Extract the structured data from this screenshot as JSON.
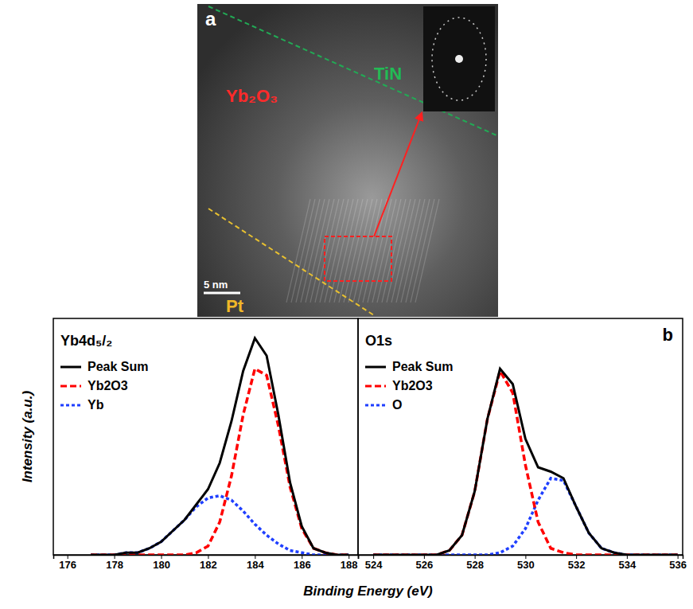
{
  "panel_a": {
    "letter": "a",
    "top_layer": "TiN",
    "oxide": "Yb₂O₃",
    "bottom_layer": "Pt",
    "scale_bar": "5 nm"
  },
  "panel_b": {
    "letter": "b",
    "xlabel": "Binding Energy (eV)",
    "ylabel": "Intensity (a.u.)"
  },
  "chart_data": [
    {
      "type": "line",
      "title": "Yb4d₅/₂",
      "x": [
        177,
        177.5,
        178,
        178.5,
        179,
        179.5,
        180,
        180.5,
        181,
        181.5,
        182,
        182.5,
        183,
        183.5,
        184,
        184.5,
        185,
        185.5,
        186,
        186.5,
        187,
        187.5,
        188
      ],
      "series": [
        {
          "name": "Peak Sum",
          "color": "#000000",
          "line_style": "solid",
          "values": [
            0,
            0,
            0,
            0.01,
            0.01,
            0.03,
            0.06,
            0.11,
            0.16,
            0.23,
            0.3,
            0.42,
            0.61,
            0.84,
            0.99,
            0.91,
            0.64,
            0.33,
            0.13,
            0.03,
            0.01,
            0,
            0
          ]
        },
        {
          "name": "Yb2O3",
          "color": "#ff0000",
          "line_style": "dashed",
          "values": [
            0,
            0,
            0,
            0,
            0,
            0,
            0,
            0,
            0,
            0.01,
            0.04,
            0.15,
            0.36,
            0.64,
            0.85,
            0.82,
            0.59,
            0.31,
            0.12,
            0.03,
            0.01,
            0,
            0
          ]
        },
        {
          "name": "Yb",
          "color": "#1f3fff",
          "line_style": "dotted",
          "values": [
            0,
            0,
            0,
            0.01,
            0.01,
            0.03,
            0.06,
            0.11,
            0.16,
            0.22,
            0.26,
            0.27,
            0.25,
            0.2,
            0.14,
            0.09,
            0.05,
            0.02,
            0.01,
            0,
            0,
            0,
            0
          ]
        }
      ],
      "xlim": [
        175.4,
        188.4
      ],
      "xticks": [
        176,
        178,
        180,
        182,
        184,
        186,
        188
      ],
      "ylim": [
        0,
        1.08
      ],
      "tick_labels": "x",
      "legend": "top-left"
    },
    {
      "type": "line",
      "title": "O1s",
      "x": [
        524,
        524.5,
        525,
        525.5,
        526,
        526.5,
        527,
        527.5,
        528,
        528.5,
        529,
        529.5,
        530,
        530.5,
        531,
        531.5,
        532,
        532.5,
        533,
        533.5,
        534,
        534.5,
        535,
        535.5,
        536
      ],
      "series": [
        {
          "name": "Peak Sum",
          "color": "#000000",
          "line_style": "solid",
          "values": [
            0,
            0,
            0,
            0,
            0,
            0,
            0.02,
            0.09,
            0.29,
            0.62,
            0.85,
            0.78,
            0.53,
            0.4,
            0.38,
            0.35,
            0.22,
            0.1,
            0.03,
            0.01,
            0,
            0,
            0,
            0,
            0
          ]
        },
        {
          "name": "Yb2O3",
          "color": "#ff0000",
          "line_style": "dashed",
          "values": [
            0,
            0,
            0,
            0,
            0,
            0,
            0.02,
            0.09,
            0.29,
            0.62,
            0.84,
            0.74,
            0.41,
            0.15,
            0.03,
            0.01,
            0,
            0,
            0,
            0,
            0,
            0,
            0,
            0,
            0
          ]
        },
        {
          "name": "O",
          "color": "#1f3fff",
          "line_style": "dotted",
          "values": [
            0,
            0,
            0,
            0,
            0,
            0,
            0,
            0,
            0,
            0,
            0.01,
            0.04,
            0.12,
            0.25,
            0.35,
            0.34,
            0.22,
            0.1,
            0.03,
            0.01,
            0,
            0,
            0,
            0,
            0
          ]
        }
      ],
      "xlim": [
        523.4,
        536.2
      ],
      "xticks": [
        524,
        526,
        528,
        530,
        532,
        534,
        536
      ],
      "ylim": [
        0,
        1.08
      ],
      "tick_labels": "x",
      "legend": "top-left"
    }
  ]
}
